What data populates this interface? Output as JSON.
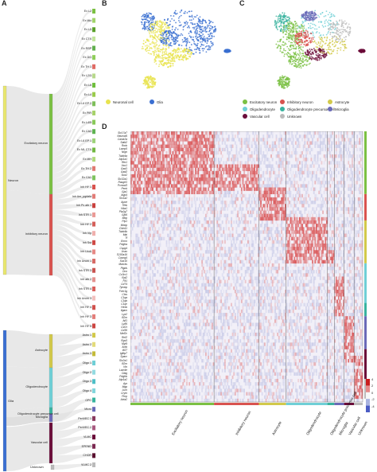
{
  "panels": {
    "a": "A",
    "b": "B",
    "c": "C",
    "d": "D"
  },
  "colors": {
    "neuron": "#e8e66e",
    "excitatory": "#7bc043",
    "inhibitory": "#d9534f",
    "astrocyte": "#d2c94a",
    "oligodendrocyte": "#6fcfd6",
    "opc": "#39b39f",
    "microglia": "#6a6ab8",
    "vascular": "#6b0d3a",
    "glia": "#3a6fd1",
    "unknown": "#bbbbbb",
    "neuronal_umap": "#e8e34f",
    "glia_umap": "#3a6fd1"
  },
  "sankey": {
    "level1": [
      {
        "label": "Neuron",
        "key": "neuron"
      },
      {
        "label": "Glia",
        "key": "glia"
      },
      {
        "label": "Unknown",
        "key": "unknown"
      }
    ],
    "level2": [
      {
        "label": "Excitatory neuron",
        "key": "excitatory"
      },
      {
        "label": "Inhibitory neuron",
        "key": "inhibitory"
      },
      {
        "label": "Astrocyte",
        "key": "astrocyte"
      },
      {
        "label": "Oligodendrocyte",
        "key": "oligodendrocyte"
      },
      {
        "label": "Oligodendrocyte precursor cell",
        "key": "opc"
      },
      {
        "label": "Microglia",
        "key": "microglia"
      },
      {
        "label": "Vascular cell",
        "key": "vascular"
      }
    ],
    "level3": [
      "Ex L2",
      "Ex Mix",
      "Ex L5",
      "Ex CTX",
      "Ex RSP",
      "Ex DG",
      "Ex TH 1",
      "Ex L2/3",
      "Ex L6",
      "Ex L4",
      "Ex L6 EP 2",
      "Ex PIR",
      "Ex L4/5",
      "Ex CA3",
      "Ex L6 EP 1",
      "Ex ML CTX",
      "Ex MH",
      "Ex TH 2",
      "Ex CA1",
      "Inh HY 1",
      "Inh Am_pgdala",
      "Inh Pv alb 1",
      "Inh STR 1",
      "Inh HY 2",
      "Inh Vip",
      "Inh Sst",
      "Inh Lhx6",
      "Inh Unchl 1",
      "Inh STR 3",
      "Inh alb 2",
      "Inh STR 4",
      "Inh Unchl 3",
      "Inh HY 4",
      "Inh HY 3",
      "Inh HY 5",
      "Astro 1",
      "Astro 2",
      "Astro 3",
      "Oligo 1",
      "Oligo 2",
      "Oligo 3",
      "Oligo 4",
      "OPC",
      "Micro",
      "PeriVEC 1",
      "PeriVEC 2",
      "VLMC",
      "EPEND",
      "CHOR",
      "VLMC 2"
    ]
  },
  "umap_b": {
    "legend": [
      {
        "label": "Neuronal cell",
        "key": "neuronal_umap"
      },
      {
        "label": "Glia",
        "key": "glia_umap"
      }
    ]
  },
  "umap_c": {
    "legend": [
      {
        "label": "Excitatory neuron",
        "key": "excitatory"
      },
      {
        "label": "Inhibitory neuron",
        "key": "inhibitory"
      },
      {
        "label": "Astrocyte",
        "key": "astrocyte"
      },
      {
        "label": "Oligodendrocyte",
        "key": "oligodendrocyte"
      },
      {
        "label": "Oligodendrocyte precursor cell",
        "key": "opc"
      },
      {
        "label": "Microglia",
        "key": "microglia"
      },
      {
        "label": "Vascular cell",
        "key": "vascular"
      },
      {
        "label": "Unknown",
        "key": "unknown"
      }
    ]
  },
  "heatmap": {
    "genes": [
      "Slc17a7",
      "Neurod6",
      "Camk2a",
      "Satb2",
      "Rorb",
      "Lamp5",
      "Nrgn",
      "Tubb4a",
      "Atp1a1",
      "Rtn1",
      "Vsn1",
      "Gad1",
      "Gad2",
      "Sox2",
      "Slc32a1",
      "Rasgrf1",
      "Pcmod3",
      "Penk",
      "Gja1",
      "Aqp4",
      "Slc1a2",
      "Apoe",
      "Tfeb",
      "Hba1",
      "Pla2g7",
      "Gjb6",
      "Mbp",
      "Plp1",
      "Mobp",
      "Cldn11",
      "Tubb4b",
      "Mal",
      "Tf",
      "Ermn",
      "Pdgfra",
      "Cspg4",
      "Vcan",
      "S100a16",
      "Cacng4",
      "Sox10",
      "Marcks",
      "Ptgds",
      "Dcn",
      "Cx3cr1",
      "Rpl2",
      "Flt1",
      "Cd74",
      "Tyrobp",
      "Fcer1g",
      "Ctss",
      "C1qa",
      "C1qb",
      "C1qc",
      "Hexb",
      "Itgam",
      "Lyz2",
      "B2m",
      "Aif1",
      "Ly86",
      "Csf1r",
      "Cd36",
      "Mef2c",
      "Rnf2",
      "Rgs5",
      "Myl9",
      "Actb",
      "Ifi27",
      "Igfbp7",
      "Sparc",
      "Slc2a1",
      "B2m",
      "Vtn",
      "Lam4e",
      "Dlag",
      "Pdgfrb",
      "Atp1a2",
      "Apr",
      "Mgp",
      "Lum",
      "Crym",
      "Pmp",
      "Acta2"
    ],
    "groups": [
      {
        "label": "Excitatory neuron",
        "key": "excitatory",
        "frac": 0.36
      },
      {
        "label": "Inhibitory neuron",
        "key": "inhibitory",
        "frac": 0.193
      },
      {
        "label": "Astrocyte",
        "key": "astrocyte",
        "frac": 0.117
      },
      {
        "label": "Oligodendrocyte",
        "key": "oligodendrocyte",
        "frac": 0.178
      },
      {
        "label": "Oligodendrocyte precursor cell",
        "key": "opc",
        "frac": 0.03
      },
      {
        "label": "Microglia",
        "key": "microglia",
        "frac": 0.042
      },
      {
        "label": "Vascular cell",
        "key": "vascular",
        "frac": 0.043
      },
      {
        "label": "Unknown",
        "key": "unknown",
        "frac": 0.037
      }
    ],
    "scale": {
      "ticks": [
        "4",
        "2",
        "0",
        "-2",
        "-4"
      ]
    }
  }
}
